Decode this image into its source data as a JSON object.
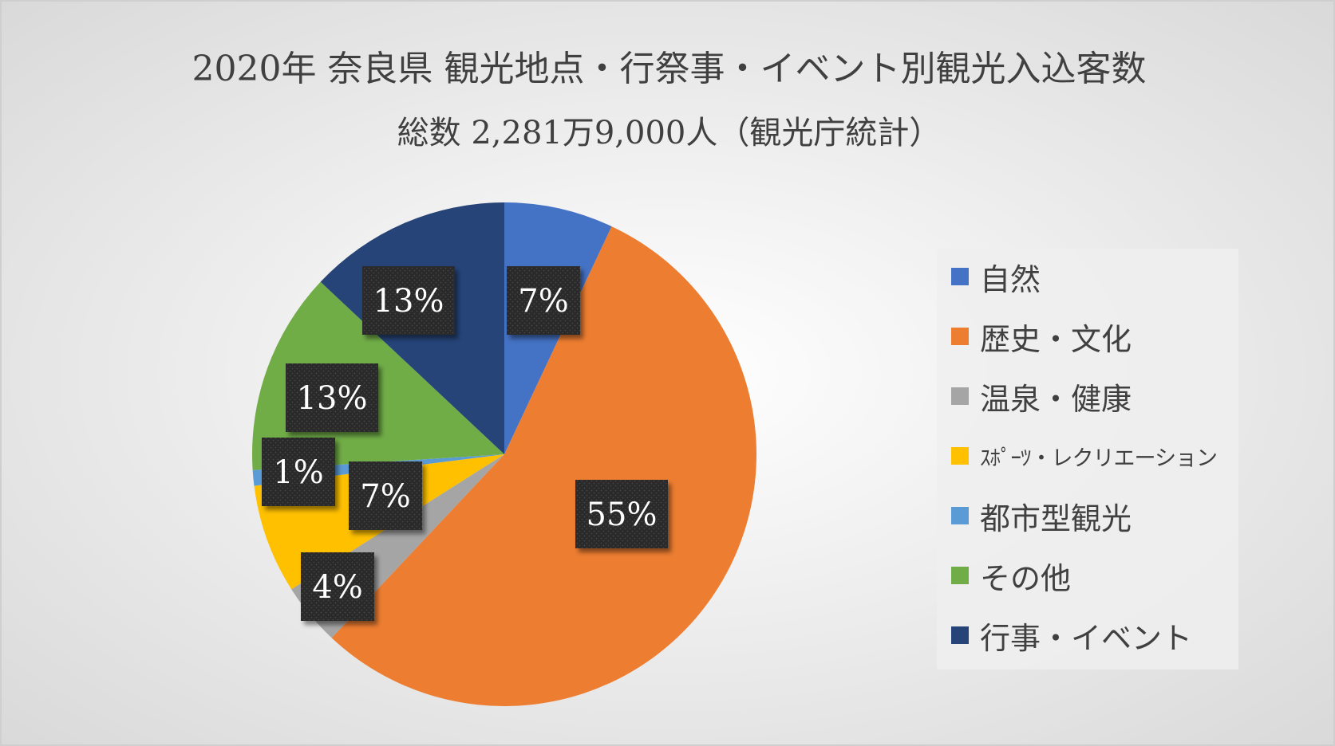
{
  "title": "2020年 奈良県 観光地点・行祭事・イベント別観光入込客数",
  "subtitle": "総数 2,281万9,000人（観光庁統計）",
  "chart_data": {
    "type": "pie",
    "title": "2020年 奈良県 観光地点・行祭事・イベント別観光入込客数",
    "subtitle": "総数 2,281万9,000人（観光庁統計）",
    "start": "top",
    "direction": "clockwise",
    "legend_position": "right",
    "slices": [
      {
        "label": "自然",
        "value": 7,
        "display": "7%",
        "color": "#4472C4"
      },
      {
        "label": "歴史・文化",
        "value": 55,
        "display": "55%",
        "color": "#ED7D31"
      },
      {
        "label": "温泉・健康",
        "value": 4,
        "display": "4%",
        "color": "#A5A5A5"
      },
      {
        "label": "ｽﾎﾟｰﾂ・レクリエーション",
        "value": 7,
        "display": "7%",
        "color": "#FFC000"
      },
      {
        "label": "都市型観光",
        "value": 1,
        "display": "1%",
        "color": "#5B9BD5"
      },
      {
        "label": "その他",
        "value": 13,
        "display": "13%",
        "color": "#70AD47"
      },
      {
        "label": "行事・イベント",
        "value": 13,
        "display": "13%",
        "color": "#264478"
      }
    ]
  }
}
